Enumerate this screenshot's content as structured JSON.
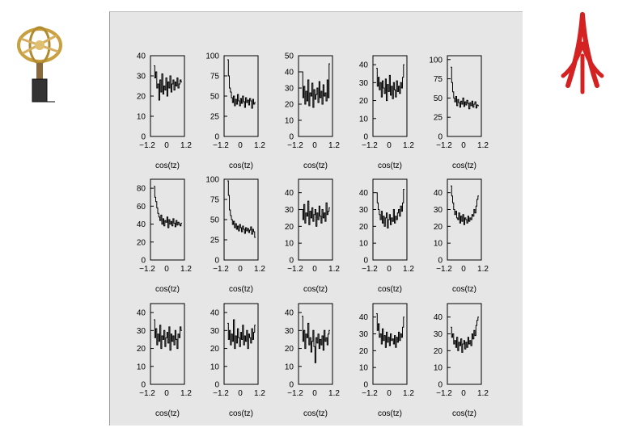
{
  "chart_data": [
    {
      "type": "line",
      "panel": 1,
      "xlabel": "cos(tz)",
      "xlim": [
        -1.2,
        1.2
      ],
      "ylim": [
        0,
        40
      ],
      "yticks": [
        "0",
        "10",
        "20",
        "30",
        "40"
      ],
      "xticks": [
        "−1.2",
        "0",
        "1.2"
      ],
      "y": [
        35,
        29,
        32,
        24,
        26,
        18,
        28,
        22,
        31,
        21,
        25,
        23,
        29,
        20,
        27,
        24,
        30,
        22,
        26,
        28,
        23,
        27,
        25,
        29,
        24,
        26,
        28,
        27
      ]
    },
    {
      "type": "line",
      "panel": 2,
      "xlabel": "cos(tz)",
      "xlim": [
        -1.2,
        1.2
      ],
      "ylim": [
        0,
        100
      ],
      "yticks": [
        "0",
        "25",
        "50",
        "75",
        "100"
      ],
      "xticks": [
        "−1.2",
        "0",
        "1.2"
      ],
      "y": [
        95,
        75,
        60,
        55,
        48,
        42,
        50,
        38,
        46,
        40,
        52,
        44,
        38,
        47,
        41,
        50,
        43,
        36,
        48,
        42,
        45,
        39,
        47,
        44,
        35,
        46,
        40,
        42
      ]
    },
    {
      "type": "line",
      "panel": 3,
      "xlabel": "cos(tz)",
      "xlim": [
        -1.2,
        1.2
      ],
      "ylim": [
        0,
        50
      ],
      "yticks": [
        "0",
        "10",
        "20",
        "30",
        "40",
        "50"
      ],
      "xticks": [
        "−1.2",
        "0",
        "1.2"
      ],
      "y": [
        40,
        24,
        31,
        20,
        28,
        22,
        35,
        19,
        27,
        25,
        33,
        18,
        29,
        23,
        26,
        30,
        21,
        34,
        24,
        28,
        20,
        32,
        25,
        27,
        22,
        35,
        24,
        45
      ]
    },
    {
      "type": "line",
      "panel": 4,
      "xlabel": "cos(tz)",
      "xlim": [
        -1.2,
        1.2
      ],
      "ylim": [
        0,
        45
      ],
      "yticks": [
        "0",
        "10",
        "20",
        "30",
        "40"
      ],
      "xticks": [
        "−1.2",
        "0",
        "1.2"
      ],
      "y": [
        38,
        28,
        33,
        26,
        30,
        22,
        31,
        27,
        24,
        32,
        20,
        29,
        25,
        34,
        23,
        28,
        21,
        30,
        26,
        22,
        31,
        25,
        28,
        24,
        30,
        27,
        33,
        40
      ]
    },
    {
      "type": "line",
      "panel": 5,
      "xlabel": "cos(tz)",
      "xlim": [
        -1.2,
        1.2
      ],
      "ylim": [
        0,
        105
      ],
      "yticks": [
        "0",
        "25",
        "50",
        "75",
        "100"
      ],
      "xticks": [
        "−1.2",
        "0",
        "1.2"
      ],
      "y": [
        90,
        70,
        58,
        50,
        45,
        52,
        40,
        48,
        44,
        38,
        46,
        42,
        50,
        39,
        45,
        41,
        47,
        43,
        36,
        44,
        40,
        46,
        38,
        42,
        45,
        37,
        41,
        40
      ]
    },
    {
      "type": "line",
      "panel": 6,
      "xlabel": "cos(tz)",
      "xlim": [
        -1.2,
        1.2
      ],
      "ylim": [
        0,
        90
      ],
      "yticks": [
        "0",
        "20",
        "40",
        "60",
        "80"
      ],
      "xticks": [
        "−1.2",
        "0",
        "1.2"
      ],
      "y": [
        82,
        70,
        65,
        58,
        52,
        48,
        44,
        50,
        40,
        46,
        38,
        44,
        42,
        48,
        36,
        45,
        40,
        43,
        38,
        46,
        41,
        37,
        44,
        39,
        42,
        40,
        38,
        41
      ]
    },
    {
      "type": "line",
      "panel": 7,
      "xlabel": "cos(tz)",
      "xlim": [
        -1.2,
        1.2
      ],
      "ylim": [
        0,
        100
      ],
      "yticks": [
        "0",
        "25",
        "50",
        "75",
        "100"
      ],
      "xticks": [
        "−1.2",
        "0",
        "1.2"
      ],
      "y": [
        98,
        80,
        62,
        55,
        50,
        44,
        48,
        40,
        45,
        38,
        42,
        36,
        44,
        40,
        35,
        42,
        38,
        33,
        40,
        36,
        39,
        34,
        37,
        41,
        32,
        38,
        35,
        28
      ]
    },
    {
      "type": "line",
      "panel": 8,
      "xlabel": "cos(tz)",
      "xlim": [
        -1.2,
        1.2
      ],
      "ylim": [
        0,
        48
      ],
      "yticks": [
        "0",
        "10",
        "20",
        "30",
        "40"
      ],
      "xticks": [
        "−1.2",
        "0",
        "1.2"
      ],
      "y": [
        30,
        24,
        33,
        22,
        28,
        26,
        35,
        21,
        29,
        25,
        31,
        23,
        27,
        30,
        20,
        28,
        24,
        32,
        26,
        22,
        30,
        25,
        28,
        23,
        34,
        27,
        29,
        31
      ]
    },
    {
      "type": "line",
      "panel": 9,
      "xlabel": "cos(tz)",
      "xlim": [
        -1.2,
        1.2
      ],
      "ylim": [
        0,
        48
      ],
      "yticks": [
        "0",
        "10",
        "20",
        "30",
        "40"
      ],
      "xticks": [
        "−1.2",
        "0",
        "1.2"
      ],
      "y": [
        40,
        34,
        30,
        27,
        24,
        29,
        22,
        26,
        20,
        25,
        28,
        19,
        24,
        27,
        21,
        25,
        23,
        30,
        22,
        26,
        24,
        28,
        30,
        26,
        32,
        29,
        34,
        42
      ]
    },
    {
      "type": "line",
      "panel": 10,
      "xlabel": "cos(tz)",
      "xlim": [
        -1.2,
        1.2
      ],
      "ylim": [
        0,
        48
      ],
      "yticks": [
        "0",
        "10",
        "20",
        "30",
        "40"
      ],
      "xticks": [
        "−1.2",
        "0",
        "1.2"
      ],
      "y": [
        44,
        38,
        34,
        30,
        27,
        29,
        25,
        24,
        28,
        22,
        26,
        23,
        27,
        21,
        25,
        24,
        22,
        26,
        23,
        25,
        24,
        27,
        26,
        30,
        28,
        32,
        36,
        38
      ]
    },
    {
      "type": "line",
      "panel": 11,
      "xlabel": "cos(tz)",
      "xlim": [
        -1.2,
        1.2
      ],
      "ylim": [
        0,
        45
      ],
      "yticks": [
        "0",
        "10",
        "20",
        "30",
        "40"
      ],
      "xticks": [
        "−1.2",
        "0",
        "1.2"
      ],
      "y": [
        36,
        26,
        31,
        22,
        28,
        24,
        33,
        20,
        27,
        25,
        30,
        21,
        26,
        29,
        23,
        32,
        19,
        28,
        24,
        27,
        22,
        30,
        25,
        20,
        28,
        26,
        32,
        30
      ]
    },
    {
      "type": "line",
      "panel": 12,
      "xlabel": "cos(tz)",
      "xlim": [
        -1.2,
        1.2
      ],
      "ylim": [
        0,
        45
      ],
      "yticks": [
        "0",
        "10",
        "20",
        "30",
        "40"
      ],
      "xticks": [
        "−1.2",
        "0",
        "1.2"
      ],
      "y": [
        34,
        25,
        30,
        22,
        28,
        24,
        36,
        20,
        27,
        23,
        31,
        26,
        21,
        29,
        25,
        33,
        22,
        27,
        24,
        30,
        20,
        28,
        26,
        23,
        31,
        25,
        29,
        33
      ]
    },
    {
      "type": "line",
      "panel": 13,
      "xlabel": "cos(tz)",
      "xlim": [
        -1.2,
        1.2
      ],
      "ylim": [
        0,
        45
      ],
      "yticks": [
        "0",
        "10",
        "20",
        "30",
        "40"
      ],
      "xticks": [
        "−1.2",
        "0",
        "1.2"
      ],
      "y": [
        38,
        24,
        30,
        20,
        28,
        26,
        34,
        22,
        26,
        18,
        24,
        30,
        21,
        12,
        26,
        23,
        28,
        20,
        25,
        22,
        27,
        19,
        30,
        24,
        26,
        22,
        28,
        30
      ]
    },
    {
      "type": "line",
      "panel": 14,
      "xlabel": "cos(tz)",
      "xlim": [
        -1.2,
        1.2
      ],
      "ylim": [
        0,
        48
      ],
      "yticks": [
        "0",
        "10",
        "20",
        "30",
        "40"
      ],
      "xticks": [
        "−1.2",
        "0",
        "1.2"
      ],
      "y": [
        42,
        32,
        36,
        28,
        30,
        24,
        33,
        26,
        29,
        22,
        31,
        25,
        28,
        23,
        30,
        26,
        27,
        24,
        29,
        22,
        28,
        25,
        31,
        26,
        30,
        28,
        34,
        40
      ]
    },
    {
      "type": "line",
      "panel": 15,
      "xlabel": "cos(tz)",
      "xlim": [
        -1.2,
        1.2
      ],
      "ylim": [
        0,
        48
      ],
      "yticks": [
        "0",
        "10",
        "20",
        "30",
        "40"
      ],
      "xticks": [
        "−1.2",
        "0",
        "1.2"
      ],
      "y": [
        34,
        28,
        30,
        24,
        26,
        22,
        28,
        20,
        25,
        23,
        27,
        19,
        24,
        26,
        21,
        25,
        22,
        28,
        24,
        26,
        23,
        30,
        27,
        32,
        29,
        35,
        38,
        40
      ]
    }
  ]
}
